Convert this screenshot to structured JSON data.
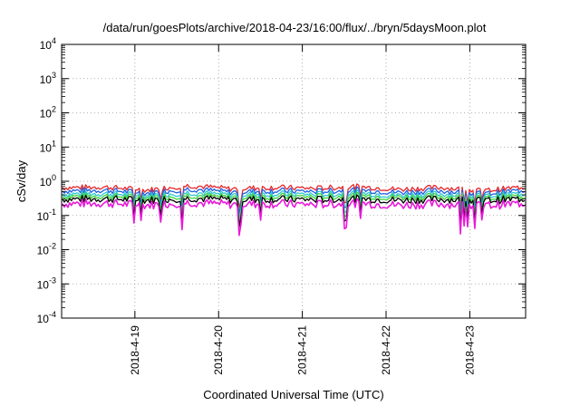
{
  "chart_data": {
    "type": "line",
    "title": "/data/run/goesPlots/archive/2018-04-23/16:00/flux/../bryn/5daysMoon.plot",
    "xlabel": "Coordinated Universal Time (UTC)",
    "ylabel": "cSv/day",
    "yscale": "log",
    "ylim": [
      0.0001,
      10000
    ],
    "xlim": [
      "2018-04-18T03:00",
      "2018-04-23T16:00"
    ],
    "y_ticks": [
      {
        "base": "10",
        "exp": "-4"
      },
      {
        "base": "10",
        "exp": "-3"
      },
      {
        "base": "10",
        "exp": "-2"
      },
      {
        "base": "10",
        "exp": "-1"
      },
      {
        "base": "10",
        "exp": "0"
      },
      {
        "base": "10",
        "exp": "1"
      },
      {
        "base": "10",
        "exp": "2"
      },
      {
        "base": "10",
        "exp": "3"
      },
      {
        "base": "10",
        "exp": "4"
      }
    ],
    "x_ticks": [
      {
        "label": "2018-4-19",
        "date": "2018-04-19T00:00"
      },
      {
        "label": "2018-4-20",
        "date": "2018-04-20T00:00"
      },
      {
        "label": "2018-4-21",
        "date": "2018-04-21T00:00"
      },
      {
        "label": "2018-4-22",
        "date": "2018-04-22T00:00"
      },
      {
        "label": "2018-4-23",
        "date": "2018-04-23T00:00"
      }
    ],
    "grid": true,
    "legend": "none",
    "series": [
      {
        "color": "#e8262a",
        "values": [
          0.65,
          0.68,
          0.55,
          0.75,
          0.6,
          0.66,
          0.62,
          0.7,
          0.58,
          0.66,
          0.52,
          0.68
        ]
      },
      {
        "color": "#1f5fe0",
        "values": [
          0.52,
          0.55,
          0.45,
          0.6,
          0.48,
          0.53,
          0.5,
          0.56,
          0.47,
          0.53,
          0.42,
          0.55
        ]
      },
      {
        "color": "#2ec7d0",
        "values": [
          0.42,
          0.44,
          0.38,
          0.47,
          0.4,
          0.43,
          0.41,
          0.45,
          0.39,
          0.43,
          0.36,
          0.44
        ]
      },
      {
        "color": "#3fd23f",
        "values": [
          0.36,
          0.37,
          0.33,
          0.39,
          0.34,
          0.36,
          0.35,
          0.38,
          0.34,
          0.36,
          0.31,
          0.37
        ]
      },
      {
        "color": "#000000",
        "values": [
          0.3,
          0.31,
          0.28,
          0.32,
          0.29,
          0.3,
          0.29,
          0.31,
          0.28,
          0.3,
          0.27,
          0.31
        ]
      },
      {
        "color": "#e81ad8",
        "values": [
          0.22,
          0.23,
          0.2,
          0.24,
          0.21,
          0.22,
          0.21,
          0.23,
          0.2,
          0.22,
          0.19,
          0.23
        ]
      }
    ]
  }
}
